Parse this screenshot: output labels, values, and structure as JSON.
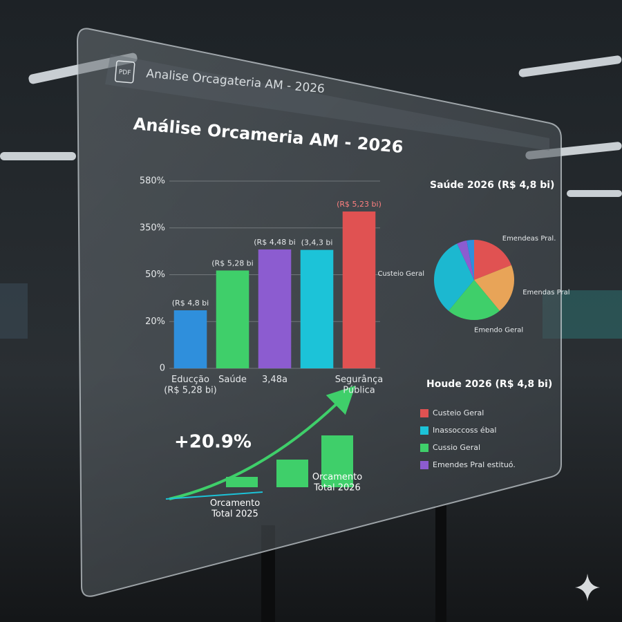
{
  "header": {
    "file_label": "PDF",
    "title": "Analise Orcagateria AM - 2026"
  },
  "chart_data": [
    {
      "type": "bar",
      "title": "Análise Orcameria AM - 2026",
      "categories": [
        "Educção (R$ 5,28 bi)",
        "Saúde",
        "3,48a",
        null,
        "Segurânça Pública"
      ],
      "values": [
        1.24,
        2.09,
        2.54,
        2.53,
        3.35
      ],
      "value_labels": [
        "(R$ 4,8 bi",
        "(R$ 5,28 bi",
        "(R$ 4,48 bi",
        "(3,4,3 bi",
        "(R$ 5,23 bi)"
      ],
      "colors": [
        "#2f8fdc",
        "#3fcf6a",
        "#8c5cd0",
        "#1cc3d8",
        "#e05252"
      ],
      "ylim": [
        0,
        4
      ],
      "yticks": [
        0,
        {
          "value": 1,
          "label": "20%"
        },
        {
          "value": 2,
          "label": "50%"
        },
        {
          "value": 3,
          "label": "350%"
        },
        {
          "value": 4,
          "label": "580%"
        }
      ],
      "grid": true
    },
    {
      "type": "pie",
      "title": "Saúde 2026 (R$ 4,8 bi)",
      "categories": [
        "Emendeas Pral.",
        "Emendas Pral",
        "Emendo Geral",
        "Custeio Geral",
        null,
        null
      ],
      "values": [
        19,
        20,
        22,
        32,
        4,
        3
      ],
      "colors": [
        "#e05252",
        "#e8a458",
        "#3fcf6a",
        "#1cb8d0",
        "#8c5cd0",
        "#2f8fdc"
      ],
      "legend_title": "Houde 2026 (R$ 4,8 bi)",
      "legend": [
        {
          "name": "Custeio Geral",
          "color": "#e05252"
        },
        {
          "name": "Inassoccoss ébal",
          "color": "#1cc3d8"
        },
        {
          "name": "Cussio Geral",
          "color": "#3fcf6a"
        },
        {
          "name": "Emendes Pral estituó.",
          "color": "#8c5cd0"
        }
      ]
    },
    {
      "type": "growth",
      "annotation": "+20.9%",
      "categories": [
        "Orcamento Total 2025",
        null,
        "Orcamento Total 2026"
      ],
      "values": [
        15,
        40,
        75
      ],
      "color": "#3fcf6a"
    }
  ]
}
